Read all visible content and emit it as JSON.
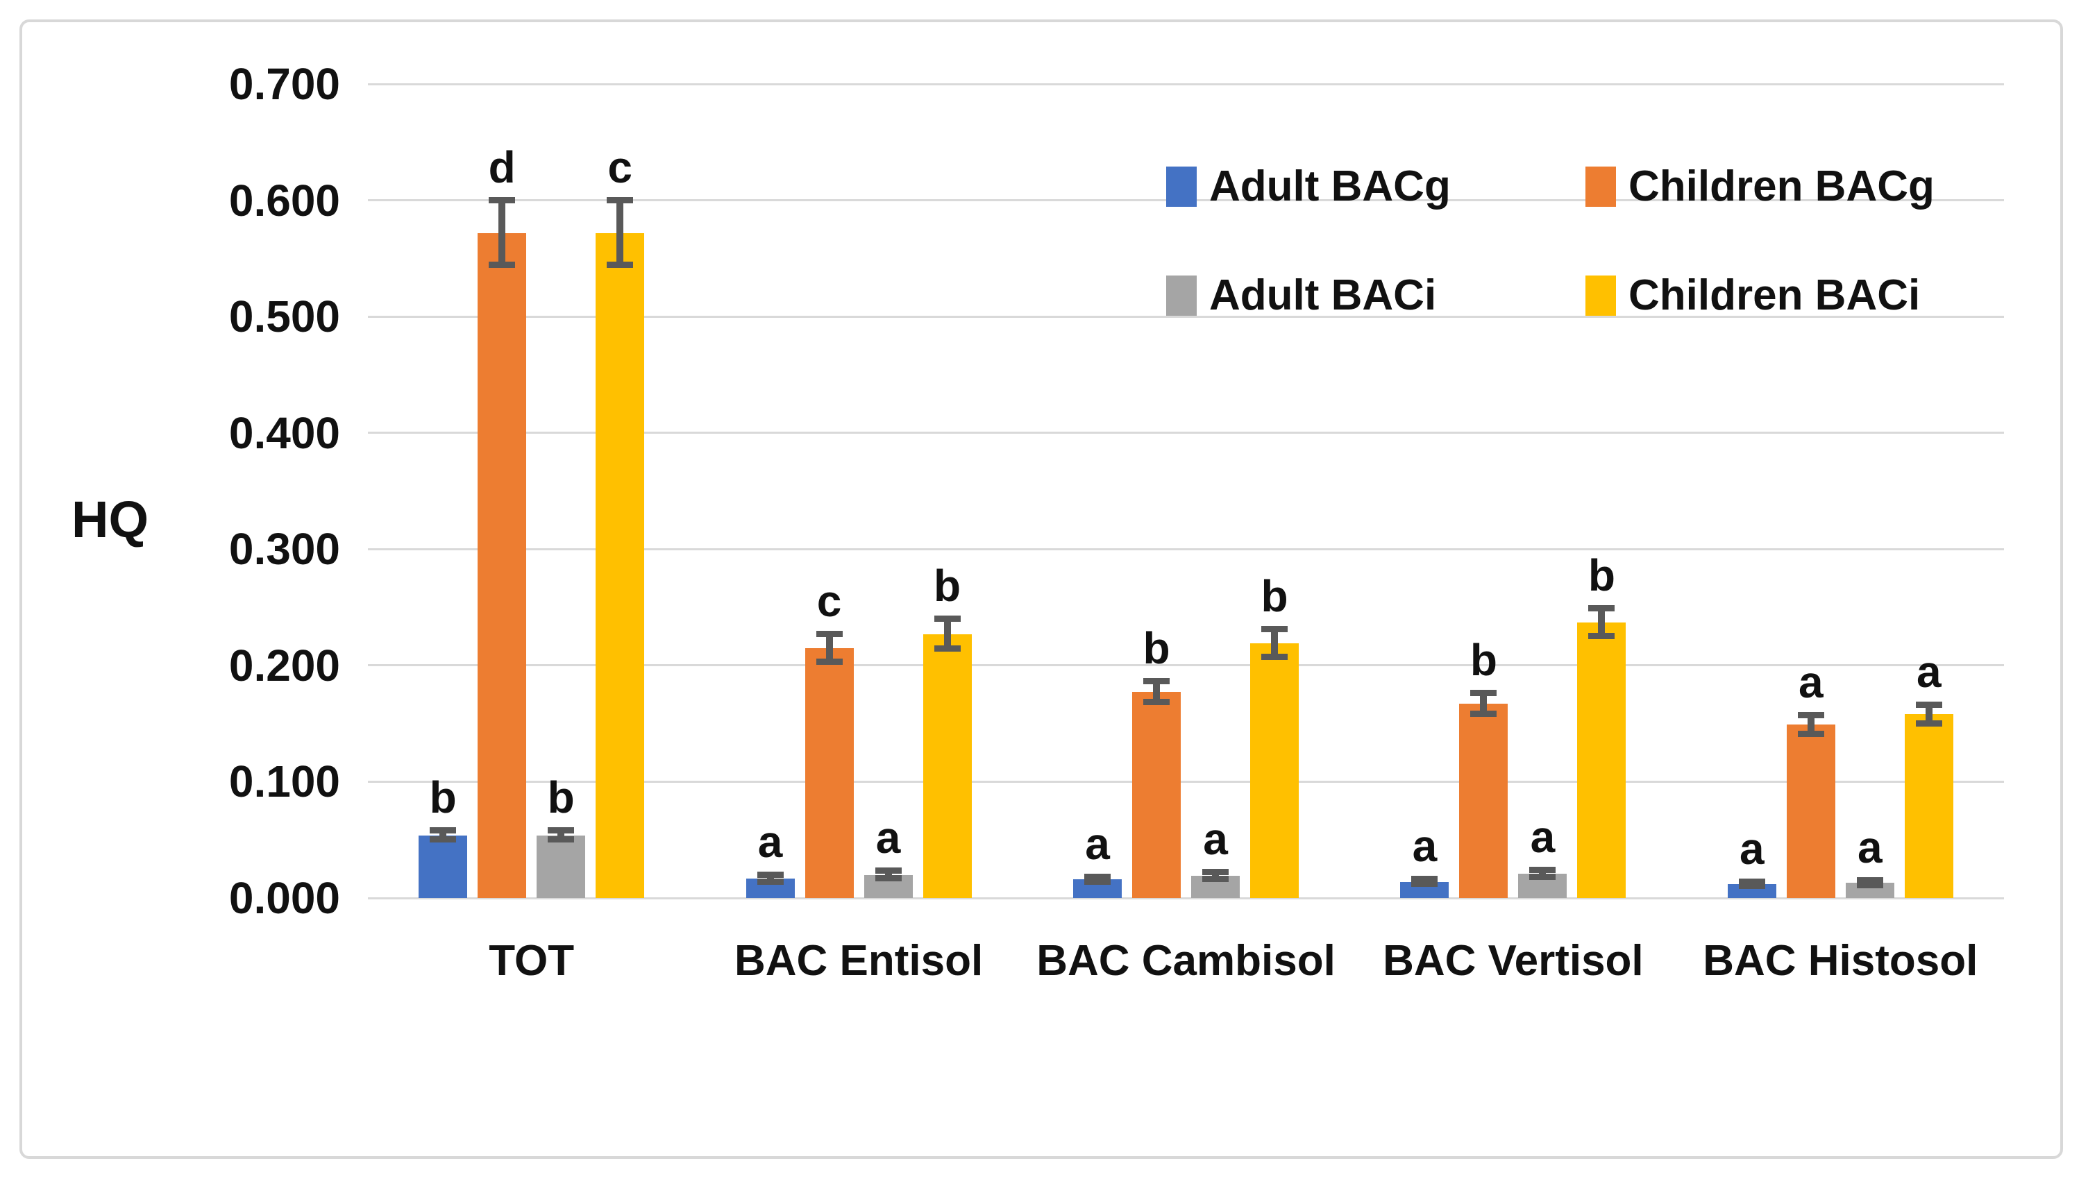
{
  "chart_data": {
    "type": "bar",
    "title": "",
    "ylabel": "HQ",
    "xlabel": "",
    "categories": [
      "TOT",
      "BAC Entisol",
      "BAC Cambisol",
      "BAC Vertisol",
      "BAC Histosol"
    ],
    "y_axis": {
      "min": 0.0,
      "max": 0.7,
      "step": 0.1,
      "tick_labels": [
        "0.000",
        "0.100",
        "0.200",
        "0.300",
        "0.400",
        "0.500",
        "0.600",
        "0.700"
      ]
    },
    "grid": true,
    "legend_position": "top-right-inside",
    "error_bar_color": "#595959",
    "gridline_color": "#d9d9d9",
    "series": [
      {
        "name": "Adult BACg",
        "color": "#4472C4",
        "values": [
          0.054,
          0.017,
          0.016,
          0.014,
          0.012
        ],
        "errors": [
          0.004,
          0.003,
          0.002,
          0.002,
          0.002
        ],
        "letters": [
          "b",
          "a",
          "a",
          "a",
          "a"
        ]
      },
      {
        "name": "Children BACg",
        "color": "#ED7D31",
        "values": [
          0.572,
          0.215,
          0.177,
          0.167,
          0.149
        ],
        "errors": [
          0.028,
          0.012,
          0.009,
          0.009,
          0.008
        ],
        "letters": [
          "d",
          "c",
          "b",
          "b",
          "a"
        ]
      },
      {
        "name": "Adult BACi",
        "color": "#A5A5A5",
        "values": [
          0.054,
          0.02,
          0.019,
          0.021,
          0.013
        ],
        "errors": [
          0.004,
          0.003,
          0.003,
          0.003,
          0.002
        ],
        "letters": [
          "b",
          "a",
          "a",
          "a",
          "a"
        ]
      },
      {
        "name": "Children BACi",
        "color": "#FFC000",
        "values": [
          0.572,
          0.227,
          0.219,
          0.237,
          0.158
        ],
        "errors": [
          0.028,
          0.013,
          0.012,
          0.012,
          0.008
        ],
        "letters": [
          "c",
          "b",
          "b",
          "b",
          "a"
        ]
      }
    ]
  }
}
